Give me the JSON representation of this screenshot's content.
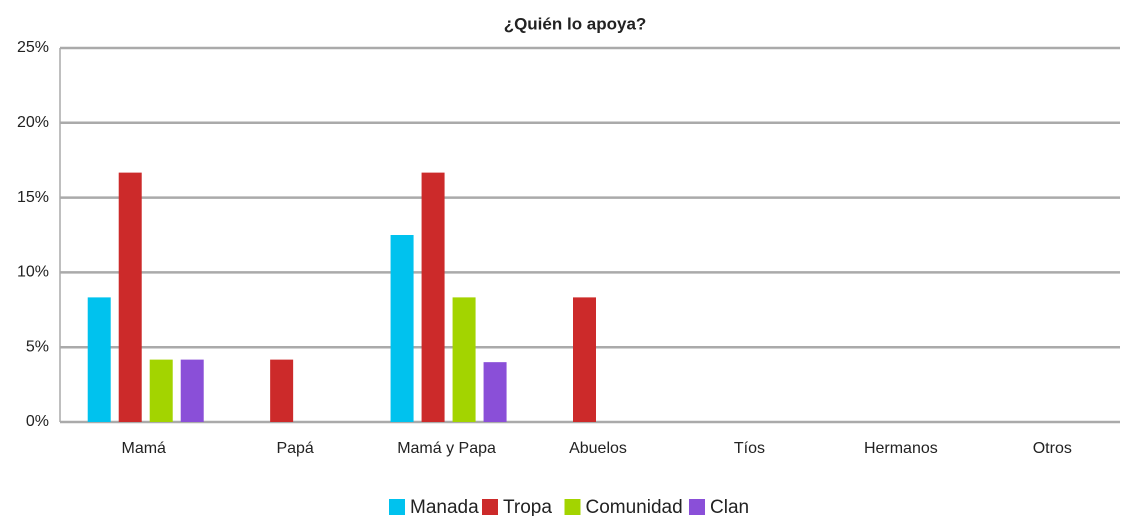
{
  "chart_data": {
    "type": "bar",
    "title": "¿Quién lo apoya?",
    "categories": [
      "Mamá",
      "Papá",
      "Mamá y Papa",
      "Abuelos",
      "Tíos",
      "Hermanos",
      "Otros"
    ],
    "series": [
      {
        "name": "Manada",
        "color": "#00c2ee",
        "values": [
          8.33,
          0,
          12.5,
          0,
          0,
          0,
          0
        ]
      },
      {
        "name": "Tropa",
        "color": "#cc2a2a",
        "values": [
          16.67,
          4.17,
          16.67,
          8.33,
          0,
          0,
          0
        ]
      },
      {
        "name": "Comunidad",
        "color": "#a3d400",
        "values": [
          4.17,
          0,
          8.33,
          0,
          0,
          0,
          0
        ]
      },
      {
        "name": "Clan",
        "color": "#8a4fd8",
        "values": [
          4.17,
          0,
          4,
          0,
          0,
          0,
          0
        ]
      }
    ],
    "ylim": [
      0,
      25
    ],
    "yticks": [
      {
        "value": 0,
        "label": "0%"
      },
      {
        "value": 5,
        "label": "5%"
      },
      {
        "value": 10,
        "label": "10%"
      },
      {
        "value": 15,
        "label": "15%"
      },
      {
        "value": 20,
        "label": "20%"
      },
      {
        "value": 25,
        "label": "25%"
      }
    ],
    "grid": true,
    "legend": "bottom"
  }
}
